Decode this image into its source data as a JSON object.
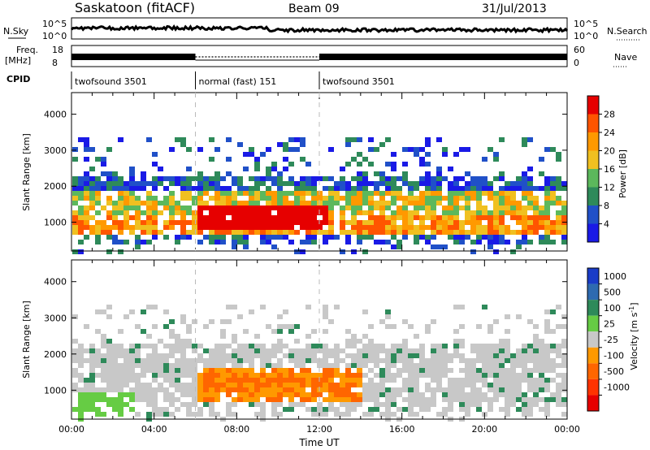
{
  "header": {
    "station": "Saskatoon (fitACF)",
    "beam": "Beam 09",
    "date": "31/Jul/2013"
  },
  "panels": {
    "nsky": {
      "label": "N.Sky",
      "ticks": [
        "10^5",
        "10^0"
      ],
      "right_label": "N.Search",
      "right_ticks": [
        "10^5",
        "10^0"
      ]
    },
    "freq": {
      "label_top": "Freq.",
      "label_bottom": "[MHz]",
      "ticks": [
        "18",
        "8"
      ],
      "right_label": "Nave",
      "right_ticks": [
        "60",
        "0"
      ]
    },
    "cpid": {
      "label": "CPID",
      "segments": [
        {
          "name": "twofsound 3501",
          "start_hour": 0,
          "end_hour": 6
        },
        {
          "name": "normal (fast) 151",
          "start_hour": 6,
          "end_hour": 12
        },
        {
          "name": "twofsound 3501",
          "start_hour": 12,
          "end_hour": 24
        }
      ]
    }
  },
  "chart_data": [
    {
      "type": "heatmap",
      "name": "power",
      "ylabel": "Slant Range [km]",
      "ylim": [
        200,
        4600
      ],
      "yticks": [
        "1000",
        "2000",
        "3000",
        "4000"
      ],
      "xlim": [
        0,
        24
      ],
      "colorbar": {
        "label": "Power [dB]",
        "ticks": [
          "4",
          "8",
          "12",
          "16",
          "20",
          "24",
          "28"
        ]
      },
      "colors": [
        "#1a1ae6",
        "#2050c8",
        "#2e8a5a",
        "#5cb85c",
        "#f0c020",
        "#ff9900",
        "#ff5500",
        "#e60000"
      ]
    },
    {
      "type": "heatmap",
      "name": "velocity",
      "ylabel": "Slant Range [km]",
      "ylim": [
        200,
        4600
      ],
      "yticks": [
        "1000",
        "2000",
        "3000",
        "4000"
      ],
      "xlim": [
        0,
        24
      ],
      "xlabel": "Time UT",
      "xticks": [
        "00:00",
        "04:00",
        "08:00",
        "12:00",
        "16:00",
        "20:00",
        "00:00"
      ],
      "colorbar": {
        "label": "Velocity [m s",
        "label_sup": "-1",
        "label_close": "]",
        "ticks": [
          "1000",
          "500",
          "100",
          "25",
          "-25",
          "-100",
          "-500",
          "-1000"
        ]
      },
      "colors": [
        "#1a3cc8",
        "#2e6ab0",
        "#2e8a5a",
        "#66cc44",
        "#c8c8c8",
        "#ff9900",
        "#ff6600",
        "#ff3300",
        "#e60000"
      ]
    }
  ]
}
